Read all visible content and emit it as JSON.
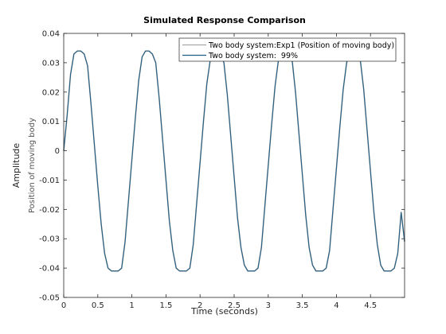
{
  "chart_data": {
    "type": "line",
    "title": "Simulated Response Comparison",
    "xlabel": "Time (seconds)",
    "ylabel": "Amplitude",
    "ylabel_secondary": "Position of moving body",
    "xlim": [
      0,
      5
    ],
    "ylim": [
      -0.05,
      0.04
    ],
    "x_ticks": [
      0,
      0.5,
      1,
      1.5,
      2,
      2.5,
      3,
      3.5,
      4,
      4.5
    ],
    "x_tick_labels": [
      "0",
      "0.5",
      "1",
      "1.5",
      "2",
      "2.5",
      "3",
      "3.5",
      "4",
      "4.5"
    ],
    "y_ticks": [
      -0.05,
      -0.04,
      -0.03,
      -0.02,
      -0.01,
      0,
      0.01,
      0.02,
      0.03,
      0.04
    ],
    "y_tick_labels": [
      "-0.05",
      "-0.04",
      "-0.03",
      "-0.02",
      "-0.01",
      "0",
      "0.01",
      "0.02",
      "0.03",
      "0.04"
    ],
    "grid": false,
    "legend_position": "top-right",
    "series": [
      {
        "name": "Two body system:Exp1 (Position of moving body)",
        "color": "#9a9a9a",
        "x": [
          0,
          0.05,
          0.1,
          0.15,
          0.2,
          0.25,
          0.3,
          0.35,
          0.4,
          0.45,
          0.5,
          0.55,
          0.6,
          0.65,
          0.7,
          0.75,
          0.8,
          0.85,
          0.9,
          0.95,
          1.0,
          1.05,
          1.1,
          1.15,
          1.2,
          1.25,
          1.3,
          1.35,
          1.4,
          1.45,
          1.5,
          1.55,
          1.6,
          1.65,
          1.7,
          1.75,
          1.8,
          1.85,
          1.9,
          1.95,
          2.0,
          2.05,
          2.1,
          2.15,
          2.2,
          2.25,
          2.3,
          2.35,
          2.4,
          2.45,
          2.5,
          2.55,
          2.6,
          2.65,
          2.7,
          2.75,
          2.8,
          2.85,
          2.9,
          2.95,
          3.0,
          3.05,
          3.1,
          3.15,
          3.2,
          3.25,
          3.3,
          3.35,
          3.4,
          3.45,
          3.5,
          3.55,
          3.6,
          3.65,
          3.7,
          3.75,
          3.8,
          3.85,
          3.9,
          3.95,
          4.0,
          4.05,
          4.1,
          4.15,
          4.2,
          4.25,
          4.3,
          4.35,
          4.4,
          4.45,
          4.5,
          4.55,
          4.6,
          4.65,
          4.7,
          4.75,
          4.8,
          4.85,
          4.9,
          4.95,
          5.0
        ],
        "y": [
          0,
          0.012,
          0.026,
          0.033,
          0.034,
          0.034,
          0.033,
          0.029,
          0.016,
          0.002,
          -0.012,
          -0.025,
          -0.035,
          -0.04,
          -0.041,
          -0.041,
          -0.041,
          -0.04,
          -0.031,
          -0.017,
          -0.003,
          0.011,
          0.024,
          0.032,
          0.034,
          0.034,
          0.033,
          0.03,
          0.018,
          0.004,
          -0.01,
          -0.024,
          -0.034,
          -0.04,
          -0.041,
          -0.041,
          -0.041,
          -0.04,
          -0.032,
          -0.018,
          -0.004,
          0.01,
          0.023,
          0.031,
          0.034,
          0.034,
          0.033,
          0.03,
          0.019,
          0.005,
          -0.009,
          -0.023,
          -0.033,
          -0.039,
          -0.041,
          -0.041,
          -0.041,
          -0.04,
          -0.033,
          -0.019,
          -0.005,
          0.009,
          0.022,
          0.031,
          0.034,
          0.034,
          0.033,
          0.031,
          0.02,
          0.006,
          -0.008,
          -0.022,
          -0.033,
          -0.039,
          -0.041,
          -0.041,
          -0.041,
          -0.04,
          -0.034,
          -0.02,
          -0.006,
          0.008,
          0.021,
          0.03,
          0.034,
          0.034,
          0.033,
          0.031,
          0.021,
          0.007,
          -0.007,
          -0.021,
          -0.032,
          -0.039,
          -0.041,
          -0.041,
          -0.041,
          -0.04,
          -0.035,
          -0.021,
          -0.031
        ]
      },
      {
        "name": "Two body system:  99%",
        "color": "#1f5e86",
        "x": [
          0,
          0.05,
          0.1,
          0.15,
          0.2,
          0.25,
          0.3,
          0.35,
          0.4,
          0.45,
          0.5,
          0.55,
          0.6,
          0.65,
          0.7,
          0.75,
          0.8,
          0.85,
          0.9,
          0.95,
          1.0,
          1.05,
          1.1,
          1.15,
          1.2,
          1.25,
          1.3,
          1.35,
          1.4,
          1.45,
          1.5,
          1.55,
          1.6,
          1.65,
          1.7,
          1.75,
          1.8,
          1.85,
          1.9,
          1.95,
          2.0,
          2.05,
          2.1,
          2.15,
          2.2,
          2.25,
          2.3,
          2.35,
          2.4,
          2.45,
          2.5,
          2.55,
          2.6,
          2.65,
          2.7,
          2.75,
          2.8,
          2.85,
          2.9,
          2.95,
          3.0,
          3.05,
          3.1,
          3.15,
          3.2,
          3.25,
          3.3,
          3.35,
          3.4,
          3.45,
          3.5,
          3.55,
          3.6,
          3.65,
          3.7,
          3.75,
          3.8,
          3.85,
          3.9,
          3.95,
          4.0,
          4.05,
          4.1,
          4.15,
          4.2,
          4.25,
          4.3,
          4.35,
          4.4,
          4.45,
          4.5,
          4.55,
          4.6,
          4.65,
          4.7,
          4.75,
          4.8,
          4.85,
          4.9,
          4.95,
          5.0
        ],
        "y": [
          0,
          0.012,
          0.026,
          0.033,
          0.034,
          0.034,
          0.033,
          0.029,
          0.016,
          0.002,
          -0.012,
          -0.025,
          -0.035,
          -0.04,
          -0.041,
          -0.041,
          -0.041,
          -0.04,
          -0.031,
          -0.017,
          -0.003,
          0.011,
          0.024,
          0.032,
          0.034,
          0.034,
          0.033,
          0.03,
          0.018,
          0.004,
          -0.01,
          -0.024,
          -0.034,
          -0.04,
          -0.041,
          -0.041,
          -0.041,
          -0.04,
          -0.032,
          -0.018,
          -0.004,
          0.01,
          0.023,
          0.031,
          0.034,
          0.034,
          0.033,
          0.03,
          0.019,
          0.005,
          -0.009,
          -0.023,
          -0.033,
          -0.039,
          -0.041,
          -0.041,
          -0.041,
          -0.04,
          -0.033,
          -0.019,
          -0.005,
          0.009,
          0.022,
          0.031,
          0.034,
          0.034,
          0.033,
          0.031,
          0.02,
          0.006,
          -0.008,
          -0.022,
          -0.033,
          -0.039,
          -0.041,
          -0.041,
          -0.041,
          -0.04,
          -0.034,
          -0.02,
          -0.006,
          0.008,
          0.021,
          0.03,
          0.034,
          0.034,
          0.033,
          0.031,
          0.021,
          0.007,
          -0.007,
          -0.021,
          -0.032,
          -0.039,
          -0.041,
          -0.041,
          -0.041,
          -0.04,
          -0.035,
          -0.021,
          -0.031
        ]
      }
    ]
  }
}
